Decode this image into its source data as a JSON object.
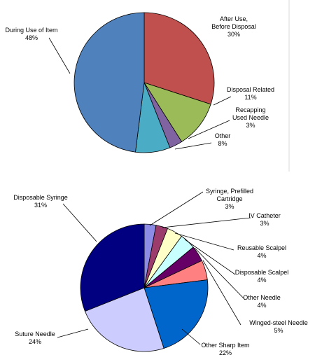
{
  "chart_data": [
    {
      "type": "pie",
      "title": "",
      "categories": [
        "During Use of Item",
        "After Use, Before Disposal",
        "Disposal Related",
        "Recapping Used Needle",
        "Other"
      ],
      "label_lines": [
        [
          "During Use of Item"
        ],
        [
          "After Use,",
          "Before Disposal"
        ],
        [
          "Disposal Related"
        ],
        [
          "Recapping",
          "Used Needle"
        ],
        [
          "Other"
        ]
      ],
      "values": [
        48,
        30,
        11,
        3,
        8
      ],
      "value_labels": [
        "48%",
        "30%",
        "11%",
        "3%",
        "8%"
      ],
      "colors": [
        "#4f81bd",
        "#c0504d",
        "#9bbb59",
        "#8064a2",
        "#4bacc6"
      ],
      "legend": "none"
    },
    {
      "type": "pie",
      "title": "",
      "categories": [
        "Syringe, Prefilled Cartridge",
        "IV Catheter",
        "Reusable Scalpel",
        "Disposable Scalpel",
        "Other Needle",
        "Winged-steel Needle",
        "Other Sharp Item",
        "Suture Needle",
        "Disposable Syringe"
      ],
      "label_lines": [
        [
          "Syringe, Prefilled",
          "Cartridge"
        ],
        [
          "IV Catheter"
        ],
        [
          "Reusable Scalpel"
        ],
        [
          "Disposable Scalpel"
        ],
        [
          "Other Needle"
        ],
        [
          "Winged-steel Needle"
        ],
        [
          "Other Sharp Item"
        ],
        [
          "Suture Needle"
        ],
        [
          "Disposable Syringe"
        ]
      ],
      "values": [
        3,
        3,
        4,
        4,
        4,
        5,
        22,
        24,
        31
      ],
      "value_labels": [
        "3%",
        "3%",
        "4%",
        "4%",
        "4%",
        "5%",
        "22%",
        "24%",
        "31%"
      ],
      "colors": [
        "#8c8ce6",
        "#9c3c6c",
        "#ffffc8",
        "#c8ffff",
        "#660066",
        "#ff8080",
        "#0066cc",
        "#ccccff",
        "#000080"
      ],
      "legend": "none"
    }
  ]
}
